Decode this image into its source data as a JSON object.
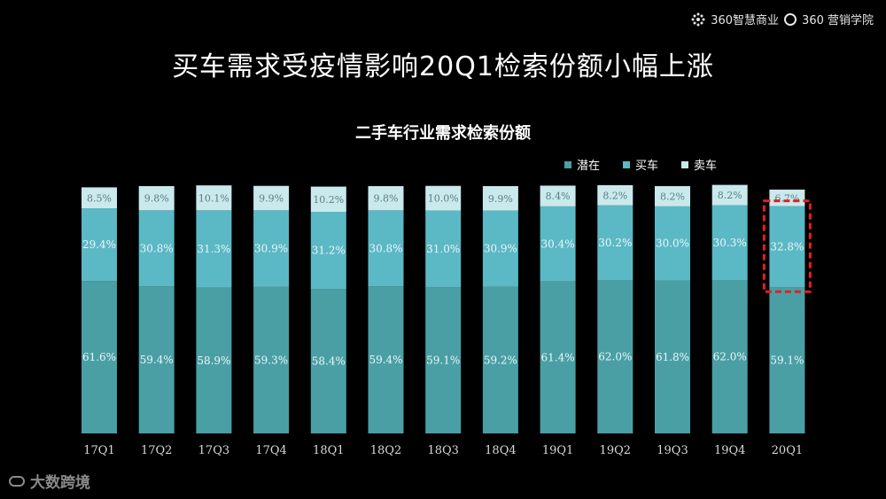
{
  "brand": {
    "left": "360智慧商业",
    "right": "360 营销学院"
  },
  "page_title": "买车需求受疫情影响20Q1检索份额小幅上涨",
  "watermark": "大数跨境",
  "chart_data": {
    "type": "bar",
    "stacked": true,
    "title": "二手车行业需求检索份额",
    "xlabel": "",
    "ylabel": "",
    "ylim": [
      0,
      100
    ],
    "grid": false,
    "legend_position": "top-right",
    "categories": [
      "17Q1",
      "17Q2",
      "17Q3",
      "17Q4",
      "18Q1",
      "18Q2",
      "18Q3",
      "18Q4",
      "19Q1",
      "19Q2",
      "19Q3",
      "19Q4",
      "20Q1"
    ],
    "series": [
      {
        "name": "潜在",
        "color": "#4a9fa5",
        "values": [
          61.6,
          59.4,
          58.9,
          59.3,
          58.4,
          59.4,
          59.1,
          59.2,
          61.4,
          62.0,
          61.8,
          62.0,
          59.1
        ]
      },
      {
        "name": "买车",
        "color": "#5bb8c5",
        "values": [
          29.4,
          30.8,
          31.3,
          30.9,
          31.2,
          30.8,
          31.0,
          30.9,
          30.4,
          30.2,
          30.0,
          30.3,
          32.8
        ]
      },
      {
        "name": "卖车",
        "color": "#c9e9ec",
        "values": [
          8.5,
          9.8,
          10.1,
          9.9,
          10.2,
          9.8,
          10.0,
          9.9,
          8.4,
          8.2,
          8.2,
          8.2,
          6.7
        ]
      }
    ],
    "highlight": {
      "category": "20Q1",
      "series": "买车",
      "color": "#e02020"
    }
  }
}
